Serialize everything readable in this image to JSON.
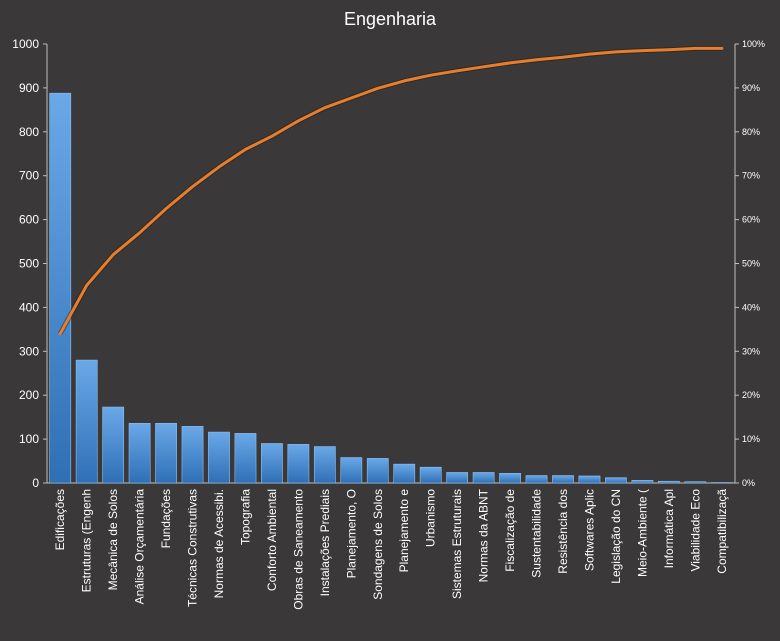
{
  "chart_data": {
    "type": "bar",
    "title": "Engenharia",
    "categories": [
      "Edificações",
      "Estruturas (Engenh",
      "Mecânica de Solos",
      "Análise Orçamentária",
      "Fundações",
      "Técnicas Construtivas",
      "Normas de Acessibi.",
      "Topografia",
      "Conforto Ambiental",
      "Obras de Saneamento",
      "Instalações Prediais",
      "Planejamento, O",
      "Sondagens de Solos",
      "Planejamento e",
      "Urbanismo",
      "Sistemas Estruturais",
      "Normas da ABNT",
      "Fiscalização de",
      "Sustentabilidade",
      "Resistência dos",
      "Softwares Aplic",
      "Legislação do CN",
      "Meio-Ambiente (",
      "Informática Apl",
      "Viabilidade Eco",
      "Compatibilizaçã"
    ],
    "series": [
      {
        "type": "bar",
        "color": "#4a90d9",
        "values": [
          888,
          280,
          173,
          136,
          136,
          129,
          116,
          113,
          90,
          88,
          83,
          58,
          56,
          43,
          36,
          24,
          24,
          22,
          17,
          17,
          16,
          12,
          6,
          4,
          3,
          1
        ]
      },
      {
        "type": "line",
        "axis": "right",
        "color": "#e87d2b",
        "values": [
          0.34,
          0.45,
          0.52,
          0.57,
          0.625,
          0.675,
          0.72,
          0.76,
          0.79,
          0.825,
          0.855,
          0.877,
          0.899,
          0.916,
          0.929,
          0.939,
          0.948,
          0.957,
          0.964,
          0.97,
          0.977,
          0.982,
          0.985,
          0.987,
          0.99,
          0.99
        ]
      }
    ],
    "ylim": [
      0,
      1000
    ],
    "yticks": [
      "0",
      "100",
      "200",
      "300",
      "400",
      "500",
      "600",
      "700",
      "800",
      "900",
      "1000"
    ],
    "y2lim": [
      0,
      1
    ],
    "y2ticks": [
      "0%",
      "10%",
      "20%",
      "30%",
      "40%",
      "50%",
      "60%",
      "70%",
      "80%",
      "90%",
      "100%"
    ],
    "xlabel": "",
    "ylabel": "",
    "grid": false,
    "legend": "none"
  }
}
